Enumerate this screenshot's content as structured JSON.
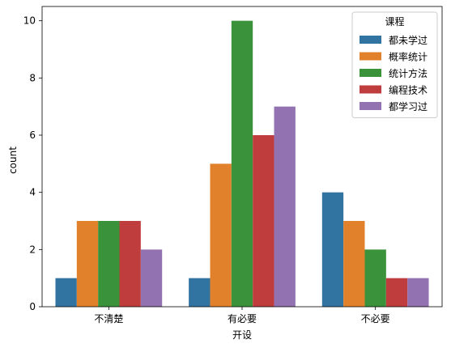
{
  "chart_data": {
    "type": "bar",
    "xlabel": "开设",
    "ylabel": "count",
    "categories": [
      "不清楚",
      "有必要",
      "不必要"
    ],
    "ylim": [
      0,
      10.5
    ],
    "yticks": [
      0,
      2,
      4,
      6,
      8,
      10
    ],
    "grid": false,
    "legend": {
      "title": "课程",
      "position": "top-right"
    },
    "series": [
      {
        "name": "都未学过",
        "color": "#3274a1",
        "values": [
          1,
          1,
          4
        ]
      },
      {
        "name": "概率统计",
        "color": "#e1812c",
        "values": [
          3,
          5,
          3
        ]
      },
      {
        "name": "统计方法",
        "color": "#3a923a",
        "values": [
          3,
          10,
          2
        ]
      },
      {
        "name": "编程技术",
        "color": "#c03d3e",
        "values": [
          3,
          6,
          1
        ]
      },
      {
        "name": "都学习过",
        "color": "#9372b2",
        "values": [
          2,
          7,
          1
        ]
      }
    ]
  }
}
